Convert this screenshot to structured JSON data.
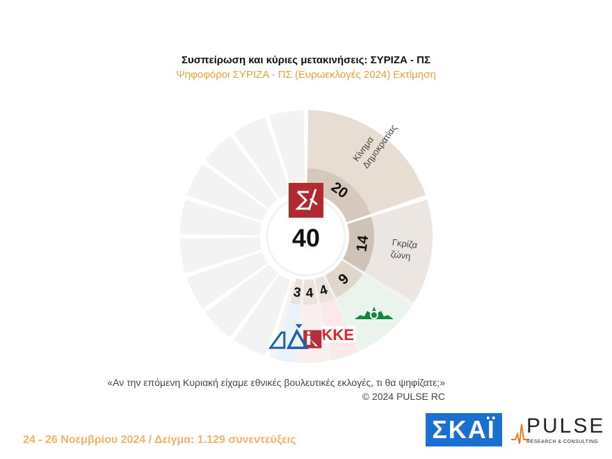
{
  "header": {
    "title": "Συσπείρωση και κύριες μετακινήσεις:  ΣΥΡΙΖΑ - ΠΣ",
    "subtitle": "Ψηφοφόροι ΣΥΡΙΖΑ - ΠΣ  (Ευρωεκλογές 2024)  Εκτίμηση"
  },
  "chart_data": {
    "type": "pie",
    "center": {
      "value": 40,
      "logo": "syriza-logo"
    },
    "slices": [
      {
        "value": 20,
        "label": [
          "Κίνημα",
          "Δημοκρατίας"
        ],
        "color": "#e8ddd3",
        "shade": "#d6c8bc"
      },
      {
        "value": 14,
        "label": [
          "Γκρίζα",
          "ζώνη"
        ],
        "color": "#ece6e2",
        "shade": "#cfc3b8"
      },
      {
        "value": 9,
        "logo": "pasok-logo",
        "color": "#eaf3ec",
        "shade": "#e0d6cc"
      },
      {
        "value": 4,
        "logo": "kke-logo",
        "color": "#fbe9e9",
        "shade": "#ebe2d9"
      },
      {
        "value": 4,
        "logo": "nea-aristera-logo",
        "color": "#fbeeee",
        "shade": "#ebe2d9"
      },
      {
        "value": 3,
        "logo": "nd-logo",
        "color": "#e9f1f9",
        "shade": "#ebe2d9"
      }
    ]
  },
  "footer": {
    "question": "«Αν την επόμενη Κυριακή είχαμε εθνικές βουλευτικές εκλογές, τι θα ψηφίζατε;»",
    "copyright": "©  2024  PULSE RC",
    "date_sample": "24 - 26 Νοεμβρίου 2024  /  Δείγμα:  1.129 συνεντεύξεις",
    "skai_logo": "ΣΚΑΪ",
    "pulse_logo": "PULSE",
    "pulse_logo_sub": "RESEARCH & CONSULTING"
  },
  "colors": {
    "subtitle": "#e6a23c",
    "syriza_red": "#b02a30",
    "pasok_green": "#0a8a3a",
    "kke_red": "#e3222a",
    "nd_blue": "#1f5fb0",
    "skai_blue": "#1a6fd0"
  }
}
